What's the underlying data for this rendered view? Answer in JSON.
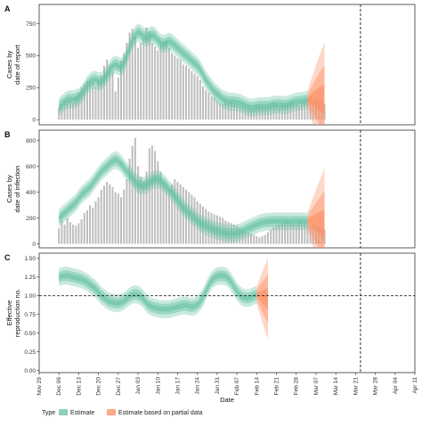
{
  "chart_data": [
    {
      "panel": "A",
      "type": "bar+area",
      "ylabel": "Cases by\ndate of report",
      "ylim": [
        -40,
        900
      ],
      "yticks": [
        0,
        250,
        500,
        750
      ],
      "cases": [
        95,
        120,
        150,
        160,
        150,
        130,
        175,
        210,
        250,
        280,
        300,
        310,
        290,
        260,
        300,
        340,
        420,
        470,
        430,
        380,
        220,
        330,
        460,
        520,
        600,
        680,
        710,
        650,
        560,
        600,
        640,
        720,
        690,
        600,
        570,
        540,
        590,
        610,
        620,
        560,
        520,
        500,
        480,
        470,
        430,
        420,
        400,
        380,
        360,
        340,
        310,
        260,
        230,
        210,
        180,
        170,
        150,
        130,
        120,
        150,
        120,
        140,
        130,
        120,
        110,
        100,
        90,
        85,
        80,
        90,
        120,
        110,
        100,
        95,
        110,
        130,
        140,
        120,
        100,
        110,
        120,
        130,
        150,
        140,
        125,
        110,
        140,
        150,
        160,
        180,
        160,
        170,
        150,
        140,
        120
      ],
      "estimate": [
        100,
        120,
        140,
        155,
        160,
        160,
        165,
        175,
        200,
        230,
        270,
        295,
        310,
        310,
        300,
        300,
        320,
        350,
        390,
        420,
        430,
        420,
        410,
        440,
        500,
        560,
        620,
        660,
        680,
        670,
        650,
        640,
        650,
        660,
        650,
        620,
        600,
        590,
        600,
        610,
        600,
        580,
        560,
        540,
        520,
        500,
        480,
        460,
        440,
        420,
        390,
        350,
        310,
        280,
        250,
        220,
        200,
        180,
        160,
        150,
        140,
        140,
        140,
        135,
        130,
        120,
        110,
        100,
        95,
        95,
        100,
        105,
        105,
        105,
        105,
        110,
        115,
        118,
        118,
        115,
        115,
        118,
        125,
        135,
        140,
        142,
        145,
        150,
        155,
        160,
        163,
        165,
        165,
        160,
        150
      ],
      "partial_start": 88
    },
    {
      "panel": "B",
      "type": "bar+area",
      "ylabel": "Cases by\ndate of infection",
      "ylim": [
        -30,
        880
      ],
      "yticks": [
        0,
        200,
        400,
        600,
        800
      ],
      "cases": [
        120,
        180,
        150,
        200,
        170,
        150,
        140,
        160,
        190,
        240,
        260,
        300,
        280,
        330,
        360,
        420,
        450,
        480,
        460,
        440,
        400,
        390,
        360,
        420,
        500,
        660,
        760,
        820,
        600,
        520,
        480,
        560,
        740,
        760,
        720,
        640,
        560,
        480,
        460,
        430,
        460,
        500,
        480,
        460,
        440,
        420,
        400,
        380,
        360,
        330,
        310,
        290,
        270,
        250,
        240,
        230,
        220,
        210,
        200,
        180,
        170,
        160,
        150,
        140,
        120,
        110,
        100,
        90,
        80,
        70,
        60,
        50,
        60,
        70,
        90,
        110,
        130,
        140,
        150,
        160,
        170,
        180,
        170,
        160,
        150,
        170,
        180,
        160,
        150,
        140,
        150,
        140,
        130,
        120,
        110
      ],
      "estimate": [
        200,
        220,
        240,
        260,
        280,
        300,
        320,
        350,
        380,
        400,
        420,
        440,
        470,
        500,
        530,
        560,
        580,
        600,
        620,
        640,
        650,
        640,
        620,
        590,
        560,
        540,
        510,
        480,
        460,
        450,
        450,
        460,
        470,
        490,
        500,
        500,
        490,
        470,
        450,
        420,
        400,
        370,
        340,
        310,
        280,
        260,
        240,
        220,
        200,
        180,
        160,
        150,
        140,
        130,
        120,
        110,
        100,
        95,
        90,
        85,
        80,
        80,
        80,
        85,
        90,
        100,
        110,
        120,
        130,
        140,
        150,
        160,
        165,
        170,
        172,
        174,
        175,
        175,
        175,
        175,
        175,
        175,
        175,
        175,
        175,
        175,
        175,
        175,
        175,
        175,
        170,
        165,
        160,
        155,
        150
      ],
      "partial_start": 88
    },
    {
      "panel": "C",
      "type": "area",
      "ylabel": "Effective\nreproduction no.",
      "ylim": [
        -0.03,
        1.57
      ],
      "yticks": [
        0.0,
        0.25,
        0.5,
        0.75,
        1.0,
        1.25,
        1.5
      ],
      "ytick_labels": [
        "0.00",
        "0.25",
        "0.50",
        "0.75",
        "1.00",
        "1.25",
        "1.50"
      ],
      "reference_line": 1.0,
      "estimate": [
        1.25,
        1.26,
        1.27,
        1.27,
        1.26,
        1.25,
        1.24,
        1.23,
        1.22,
        1.2,
        1.18,
        1.15,
        1.12,
        1.09,
        1.05,
        1.0,
        0.97,
        0.94,
        0.92,
        0.91,
        0.9,
        0.9,
        0.91,
        0.93,
        0.96,
        0.99,
        1.01,
        1.02,
        1.01,
        0.99,
        0.95,
        0.9,
        0.87,
        0.85,
        0.84,
        0.83,
        0.82,
        0.82,
        0.82,
        0.82,
        0.83,
        0.84,
        0.85,
        0.86,
        0.87,
        0.87,
        0.86,
        0.85,
        0.86,
        0.88,
        0.92,
        0.98,
        1.06,
        1.14,
        1.2,
        1.24,
        1.26,
        1.27,
        1.27,
        1.26,
        1.23,
        1.18,
        1.12,
        1.06,
        1.01,
        0.98,
        0.97,
        0.97,
        0.98,
        1.0,
        1.01,
        1.0,
        0.98,
        0.97,
        0.96
      ],
      "partial_start": 70
    }
  ],
  "x_axis": {
    "label": "Date",
    "ticks": [
      "Nov 29",
      "Dec 06",
      "Dec 13",
      "Dec 20",
      "Dec 27",
      "Jan 03",
      "Jan 10",
      "Jan 17",
      "Jan 24",
      "Jan 31",
      "Feb 07",
      "Feb 14",
      "Feb 21",
      "Feb 28",
      "Mar 07",
      "Mar 14",
      "Mar 21",
      "Mar 28",
      "Apr 04",
      "Apr 11"
    ],
    "forecast_line_after_tick": 16
  },
  "legend": {
    "title": "Type",
    "items": [
      "Estimate",
      "Estimate based on partial data"
    ]
  },
  "colors": {
    "estimate": "#66c2a5",
    "partial": "#fc8d62",
    "bars": "#bdbdbd",
    "grid_line": "#000000"
  }
}
